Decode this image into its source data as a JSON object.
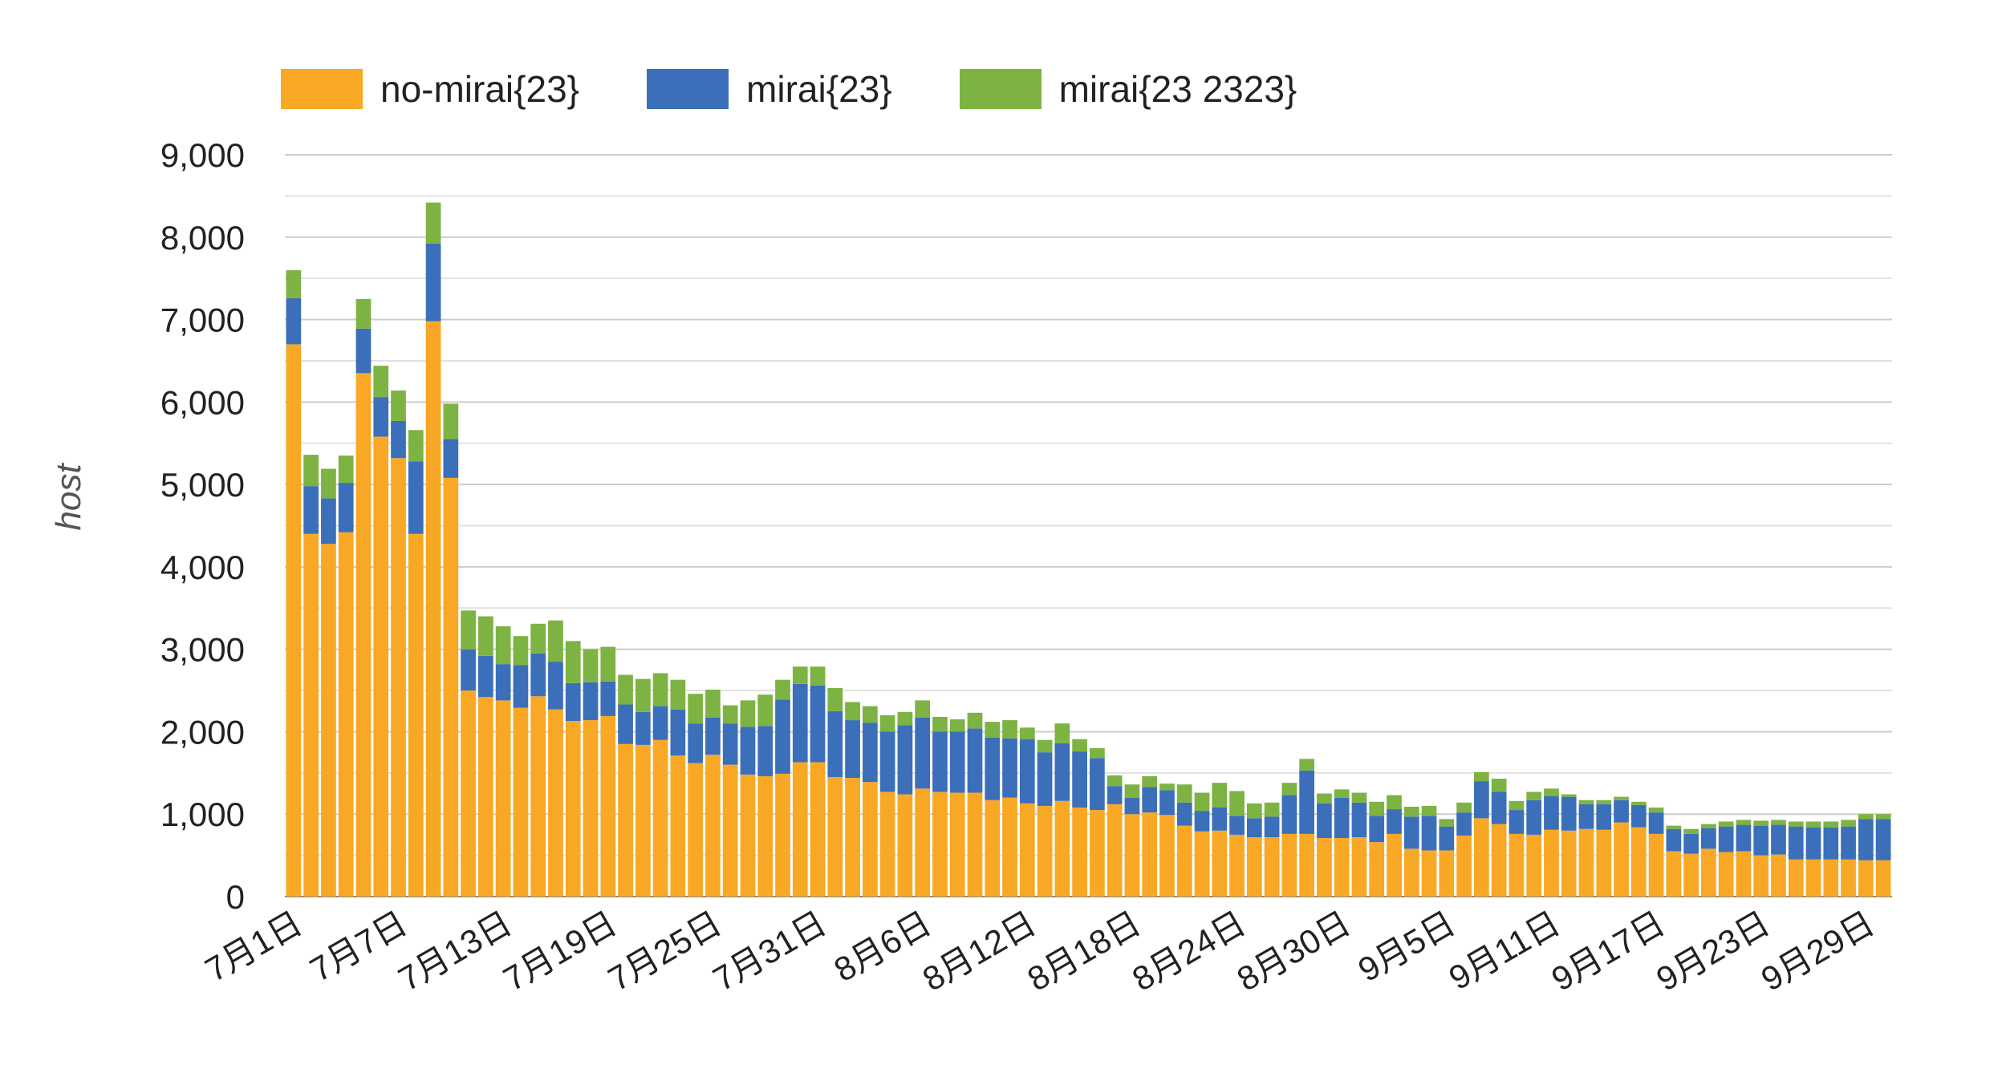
{
  "chart_data": {
    "type": "bar",
    "stacked": true,
    "title": "",
    "ylabel": "host",
    "xlabel": "",
    "ylim": [
      0,
      9000
    ],
    "yticks": [
      0,
      1000,
      2000,
      3000,
      4000,
      5000,
      6000,
      7000,
      8000,
      9000
    ],
    "ytick_labels": [
      "0",
      "1,000",
      "2,000",
      "3,000",
      "4,000",
      "5,000",
      "6,000",
      "7,000",
      "8,000",
      "9,000"
    ],
    "grid": true,
    "legend_position": "top-left",
    "xtick_labels": [
      "7月1日",
      "7月7日",
      "7月13日",
      "7月19日",
      "7月25日",
      "7月31日",
      "8月6日",
      "8月12日",
      "8月18日",
      "8月24日",
      "8月30日",
      "9月5日",
      "9月11日",
      "9月17日",
      "9月23日",
      "9月29日"
    ],
    "xtick_every": 6,
    "categories": [
      "7/1",
      "7/2",
      "7/3",
      "7/4",
      "7/5",
      "7/6",
      "7/7",
      "7/8",
      "7/9",
      "7/10",
      "7/11",
      "7/12",
      "7/13",
      "7/14",
      "7/15",
      "7/16",
      "7/17",
      "7/18",
      "7/19",
      "7/20",
      "7/21",
      "7/22",
      "7/23",
      "7/24",
      "7/25",
      "7/26",
      "7/27",
      "7/28",
      "7/29",
      "7/30",
      "7/31",
      "8/1",
      "8/2",
      "8/3",
      "8/4",
      "8/5",
      "8/6",
      "8/7",
      "8/8",
      "8/9",
      "8/10",
      "8/11",
      "8/12",
      "8/13",
      "8/14",
      "8/15",
      "8/16",
      "8/17",
      "8/18",
      "8/19",
      "8/20",
      "8/21",
      "8/22",
      "8/23",
      "8/24",
      "8/25",
      "8/26",
      "8/27",
      "8/28",
      "8/29",
      "8/30",
      "8/31",
      "9/1",
      "9/2",
      "9/3",
      "9/4",
      "9/5",
      "9/6",
      "9/7",
      "9/8",
      "9/9",
      "9/10",
      "9/11",
      "9/12",
      "9/13",
      "9/14",
      "9/15",
      "9/16",
      "9/17",
      "9/18",
      "9/19",
      "9/20",
      "9/21",
      "9/22",
      "9/23",
      "9/24",
      "9/25",
      "9/26",
      "9/27",
      "9/28",
      "9/29",
      "9/30"
    ],
    "series": [
      {
        "name": "no-mirai{23}",
        "color": "#f9a825",
        "values": [
          6700,
          4400,
          4280,
          4420,
          6350,
          5580,
          5320,
          4400,
          6980,
          5080,
          2500,
          2420,
          2380,
          2290,
          2430,
          2270,
          2130,
          2140,
          2190,
          1850,
          1840,
          1900,
          1710,
          1620,
          1720,
          1600,
          1480,
          1460,
          1490,
          1630,
          1630,
          1450,
          1440,
          1390,
          1270,
          1240,
          1310,
          1270,
          1260,
          1260,
          1170,
          1200,
          1130,
          1100,
          1160,
          1080,
          1050,
          1120,
          1000,
          1020,
          990,
          860,
          790,
          800,
          750,
          720,
          720,
          760,
          760,
          710,
          710,
          720,
          660,
          760,
          580,
          560,
          560,
          740,
          950,
          880,
          760,
          750,
          810,
          800,
          820,
          810,
          900,
          840,
          760,
          550,
          520,
          580,
          540,
          550,
          500,
          510,
          450,
          450,
          450,
          450,
          440,
          440
        ],
        "value_labels": []
      },
      {
        "name": "mirai{23}",
        "color": "#3b6fba",
        "values": [
          560,
          580,
          550,
          600,
          540,
          480,
          450,
          880,
          940,
          470,
          500,
          500,
          440,
          520,
          520,
          580,
          460,
          460,
          420,
          480,
          400,
          410,
          560,
          480,
          450,
          500,
          580,
          610,
          900,
          950,
          930,
          800,
          700,
          720,
          730,
          840,
          860,
          730,
          740,
          780,
          760,
          720,
          780,
          650,
          700,
          680,
          630,
          220,
          200,
          310,
          300,
          280,
          250,
          280,
          230,
          230,
          250,
          470,
          770,
          420,
          490,
          420,
          320,
          300,
          390,
          420,
          290,
          280,
          450,
          390,
          290,
          420,
          410,
          410,
          300,
          310,
          270,
          270,
          260,
          270,
          240,
          250,
          310,
          320,
          360,
          360,
          400,
          390,
          390,
          400,
          500,
          500
        ],
        "value_labels": []
      },
      {
        "name": "mirai{23 2323}",
        "color": "#7cb342",
        "values": [
          340,
          380,
          360,
          330,
          360,
          380,
          370,
          380,
          500,
          430,
          470,
          480,
          460,
          350,
          360,
          500,
          510,
          400,
          420,
          360,
          400,
          400,
          360,
          360,
          340,
          220,
          320,
          380,
          240,
          210,
          230,
          280,
          220,
          200,
          200,
          160,
          210,
          180,
          150,
          190,
          190,
          220,
          140,
          150,
          240,
          150,
          120,
          130,
          160,
          130,
          80,
          220,
          220,
          300,
          300,
          180,
          170,
          150,
          140,
          120,
          100,
          120,
          170,
          170,
          120,
          120,
          90,
          120,
          110,
          160,
          110,
          100,
          90,
          30,
          50,
          50,
          40,
          40,
          60,
          40,
          60,
          50,
          60,
          60,
          60,
          60,
          60,
          70,
          70,
          80,
          60,
          60
        ],
        "value_labels": []
      }
    ]
  }
}
